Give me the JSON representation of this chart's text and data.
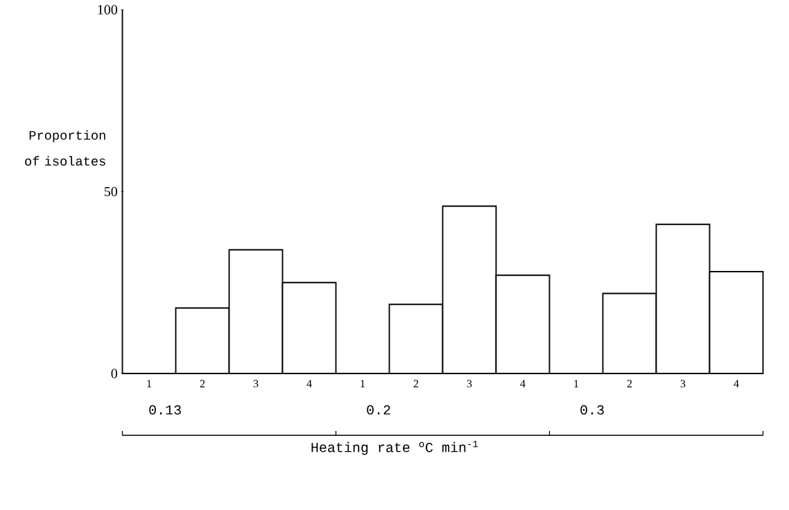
{
  "chart_data": {
    "type": "bar",
    "categories": [
      "1",
      "2",
      "3",
      "4",
      "1",
      "2",
      "3",
      "4",
      "1",
      "2",
      "3",
      "4"
    ],
    "values": [
      0,
      18,
      34,
      25,
      0,
      19,
      46,
      27,
      0,
      22,
      41,
      28
    ],
    "color": "#ffffff",
    "ylabel": "Proportion of isolates",
    "xlabel": "Heating rate $^{o}$C min$^{-1}$",
    "annotations": [
      "0.13",
      "0.2",
      "0.3"
    ],
    "ylim": [
      0,
      100
    ],
    "yticks": [
      0,
      50,
      100
    ]
  }
}
